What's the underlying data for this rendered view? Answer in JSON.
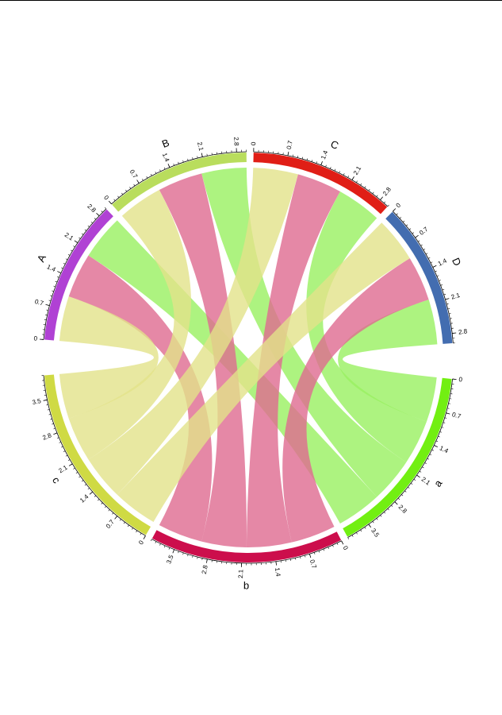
{
  "sectors": [
    {
      "name": "A",
      "color": "#b041d4",
      "ticks": [
        0,
        0.7,
        1.4,
        2.1,
        2.8
      ]
    },
    {
      "name": "B",
      "color": "#b9dd5d",
      "ticks": [
        0,
        0.7,
        1.4,
        2.1,
        2.8
      ]
    },
    {
      "name": "C",
      "color": "#e01e16",
      "ticks": [
        0,
        0.7,
        1.4,
        2.1,
        2.8
      ]
    },
    {
      "name": "D",
      "color": "#436db0",
      "ticks": [
        0,
        0.7,
        1.4,
        2.1,
        2.8
      ]
    },
    {
      "name": "a",
      "color": "#72ef12",
      "ticks": [
        0,
        0.7,
        1.4,
        2.1,
        2.8,
        3.5
      ]
    },
    {
      "name": "b",
      "color": "#cc0e4c",
      "ticks": [
        0,
        0.7,
        1.4,
        2.1,
        2.8,
        3.5
      ]
    },
    {
      "name": "c",
      "color": "#cfda44",
      "ticks": [
        0,
        0.7,
        1.4,
        2.1,
        2.8,
        3.5
      ]
    }
  ],
  "minor_tick_step": 0.1,
  "links": [
    {
      "from": "A",
      "to": "a",
      "value": 1,
      "color": "#98f060"
    },
    {
      "from": "A",
      "to": "b",
      "value": 1,
      "color": "#df6a90"
    },
    {
      "from": "A",
      "to": "c",
      "value": 1,
      "color": "#e2e28a"
    },
    {
      "from": "B",
      "to": "a",
      "value": 1,
      "color": "#98f060"
    },
    {
      "from": "B",
      "to": "b",
      "value": 1,
      "color": "#df6a90"
    },
    {
      "from": "B",
      "to": "c",
      "value": 1,
      "color": "#e2e28a"
    },
    {
      "from": "C",
      "to": "a",
      "value": 1,
      "color": "#98f060"
    },
    {
      "from": "C",
      "to": "b",
      "value": 1,
      "color": "#df6a90"
    },
    {
      "from": "C",
      "to": "c",
      "value": 1,
      "color": "#e2e28a"
    },
    {
      "from": "D",
      "to": "a",
      "value": 1,
      "color": "#98f060"
    },
    {
      "from": "D",
      "to": "b",
      "value": 1,
      "color": "#df6a90"
    },
    {
      "from": "D",
      "to": "c",
      "value": 1,
      "color": "#e2e28a"
    }
  ]
}
